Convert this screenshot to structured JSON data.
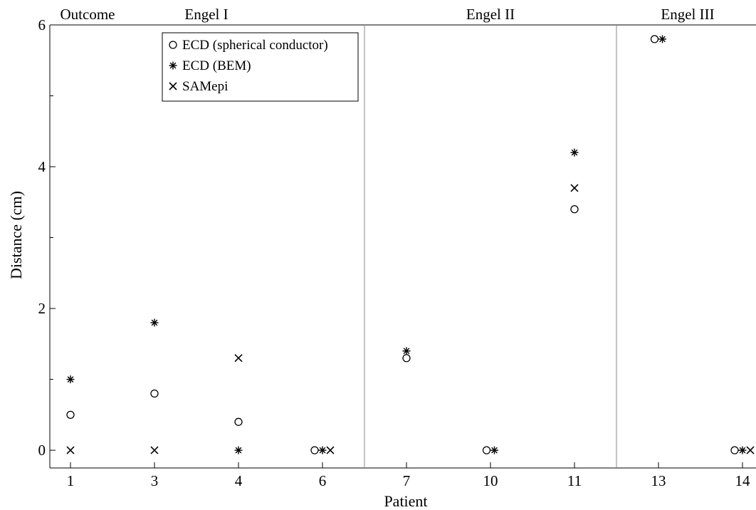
{
  "chart_data": {
    "type": "scatter",
    "title": "",
    "xlabel": "Patient",
    "ylabel": "Distance (cm)",
    "categories": [
      "1",
      "3",
      "4",
      "6",
      "7",
      "10",
      "11",
      "13",
      "14"
    ],
    "ylim": [
      -0.25,
      6
    ],
    "yticks": [
      0,
      2,
      4,
      6
    ],
    "grid": false,
    "legend_position": "top-left",
    "outcome_header": "Outcome",
    "groups": [
      {
        "label": "Engel I",
        "categories": [
          "1",
          "3",
          "4",
          "6"
        ]
      },
      {
        "label": "Engel II",
        "categories": [
          "7",
          "10",
          "11"
        ]
      },
      {
        "label": "Engel III",
        "categories": [
          "13",
          "14"
        ]
      }
    ],
    "series": [
      {
        "name": "ECD (spherical conductor)",
        "marker": "circle",
        "values": [
          0.5,
          0.8,
          0.4,
          0,
          1.3,
          0,
          3.4,
          5.8,
          0
        ]
      },
      {
        "name": "ECD (BEM)",
        "marker": "asterisk",
        "values": [
          1.0,
          1.8,
          0,
          0,
          1.4,
          0,
          4.2,
          5.8,
          0
        ]
      },
      {
        "name": "SAMepi",
        "marker": "cross",
        "values": [
          0,
          0,
          1.3,
          0,
          null,
          null,
          3.7,
          null,
          0
        ]
      }
    ]
  }
}
